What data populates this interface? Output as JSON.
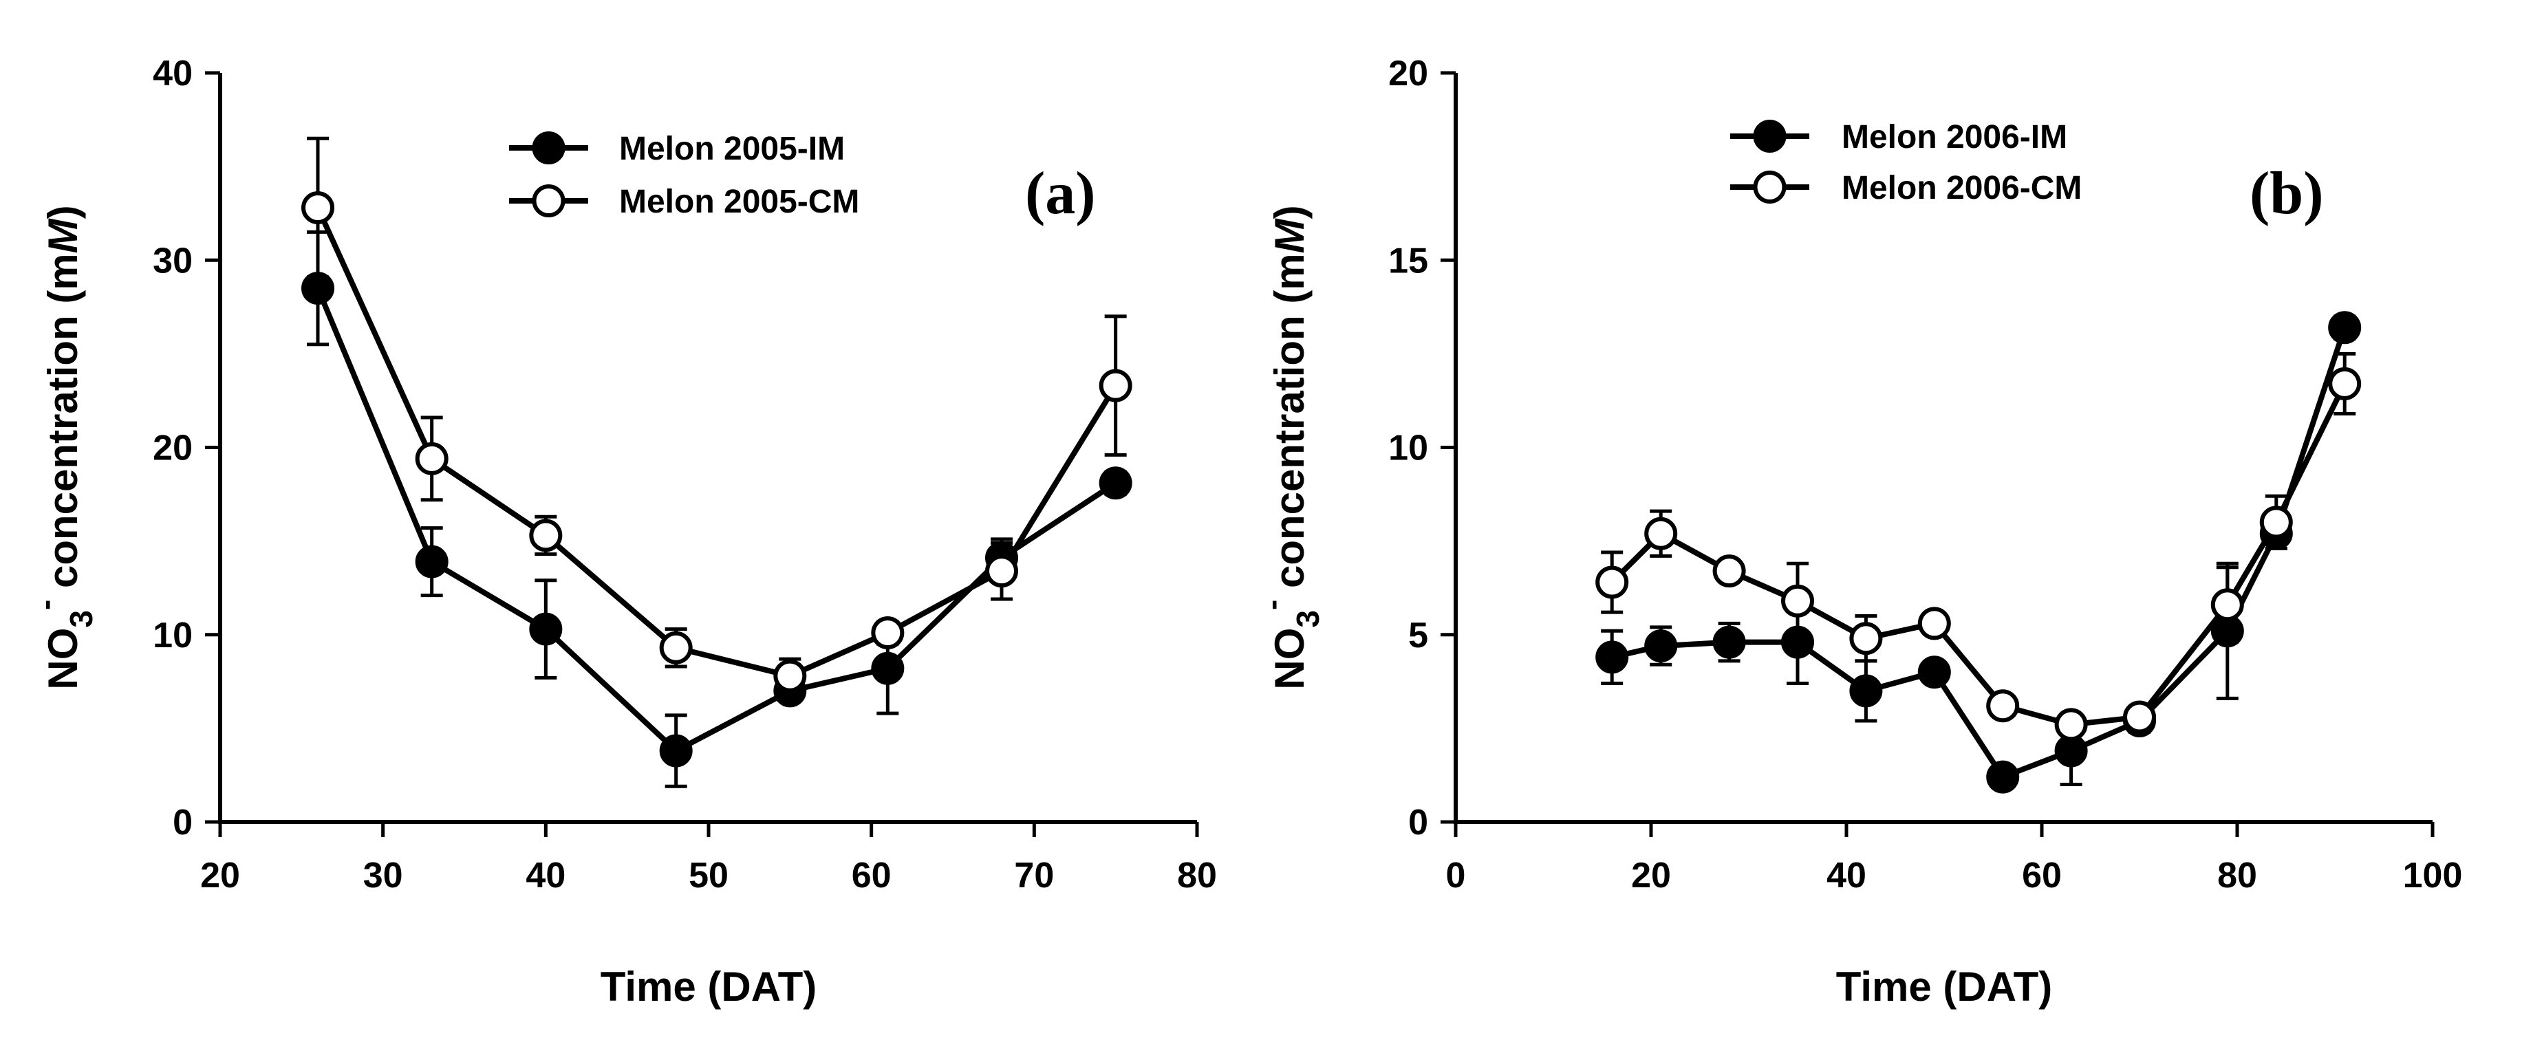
{
  "chart_data": [
    {
      "type": "line",
      "panel_label": "(a)",
      "xlabel": "Time (DAT)",
      "ylabel": {
        "prefix": "NO",
        "subscript": "3",
        "superscript": "-",
        "main": " concentration (m",
        "italic": "M",
        "suffix": ")"
      },
      "xlim": [
        20,
        80
      ],
      "ylim": [
        0,
        40
      ],
      "xticks": [
        20,
        30,
        40,
        50,
        60,
        70,
        80
      ],
      "yticks": [
        0,
        10,
        20,
        30,
        40
      ],
      "legend_position": "top-center",
      "series": [
        {
          "name": "Melon 2005-IM",
          "marker": "filled",
          "x": [
            26,
            33,
            40,
            48,
            55,
            61,
            68,
            75
          ],
          "y": [
            28.5,
            13.9,
            10.3,
            3.8,
            7.0,
            8.2,
            14.1,
            18.1
          ],
          "err": [
            3.0,
            1.8,
            2.6,
            1.9,
            0.5,
            2.4,
            1.0,
            0.6
          ]
        },
        {
          "name": "Melon 2005-CM",
          "marker": "open",
          "x": [
            26,
            33,
            40,
            48,
            55,
            61,
            68,
            75
          ],
          "y": [
            32.8,
            19.4,
            15.3,
            9.3,
            7.8,
            10.1,
            13.4,
            23.3
          ],
          "err": [
            3.7,
            2.2,
            1.0,
            1.0,
            0.9,
            0.6,
            1.5,
            3.7
          ]
        }
      ]
    },
    {
      "type": "line",
      "panel_label": "(b)",
      "xlabel": "Time (DAT)",
      "ylabel": {
        "prefix": "NO",
        "subscript": "3",
        "superscript": "-",
        "main": " concentration (m",
        "italic": "M",
        "suffix": ")"
      },
      "xlim": [
        0,
        100
      ],
      "ylim": [
        0,
        20
      ],
      "xticks": [
        0,
        20,
        40,
        60,
        80,
        100
      ],
      "yticks": [
        0,
        5,
        10,
        15,
        20
      ],
      "legend_position": "top-left",
      "series": [
        {
          "name": "Melon 2006-IM",
          "marker": "filled",
          "x": [
            16,
            21,
            28,
            35,
            42,
            49,
            56,
            63,
            70,
            79,
            84,
            91
          ],
          "y": [
            4.4,
            4.7,
            4.8,
            4.8,
            3.5,
            4.0,
            1.2,
            1.9,
            2.7,
            5.1,
            7.7,
            13.2
          ],
          "err": [
            0.7,
            0.5,
            0.5,
            1.1,
            0.8,
            0.2,
            0.2,
            0.9,
            0.3,
            1.8,
            0.4,
            0.3
          ]
        },
        {
          "name": "Melon 2006-CM",
          "marker": "open",
          "x": [
            16,
            21,
            28,
            35,
            42,
            49,
            56,
            63,
            70,
            79,
            84,
            91
          ],
          "y": [
            6.4,
            7.7,
            6.7,
            5.9,
            4.9,
            5.3,
            3.1,
            2.6,
            2.8,
            5.8,
            8.0,
            11.7
          ],
          "err": [
            0.8,
            0.6,
            0.2,
            1.0,
            0.6,
            0.2,
            0.2,
            0.2,
            0.2,
            1.0,
            0.7,
            0.8
          ]
        }
      ]
    }
  ]
}
